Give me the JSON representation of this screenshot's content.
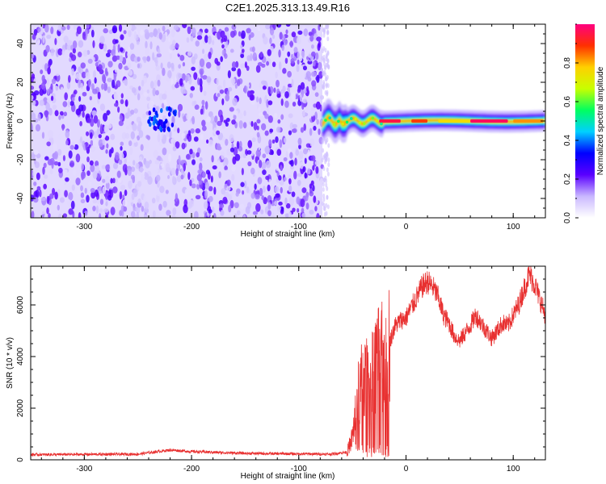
{
  "chart_data": [
    {
      "type": "heatmap",
      "title": "C2E1.2025.313.13.49.R16",
      "xlabel": "Height of straight line (km)",
      "ylabel": "Frequency (Hz)",
      "xlim": [
        -350,
        130
      ],
      "ylim": [
        -50,
        50
      ],
      "xticks": [
        -300,
        -200,
        -100,
        0,
        100
      ],
      "yticks": [
        -40,
        -20,
        0,
        20,
        40
      ],
      "regions": [
        {
          "name": "noise band",
          "x_range": [
            -350,
            -78
          ],
          "freq_range": [
            -50,
            50
          ],
          "amplitude": [
            0.05,
            0.25
          ]
        },
        {
          "name": "signal ridge",
          "x_range": [
            -78,
            130
          ],
          "freq_center": 0,
          "amplitude_peak": 1.0
        }
      ],
      "colorbar": {
        "label": "Normalized spectral amplitude",
        "range": [
          0.0,
          1.0
        ],
        "ticks": [
          "0.0",
          "0.2",
          "0.4",
          "0.6",
          "0.8"
        ],
        "stops": [
          "#ffffff",
          "#c9b8ff",
          "#5a00ff",
          "#0000ff",
          "#00d0ff",
          "#00ff60",
          "#c8ff00",
          "#ffd000",
          "#ff3000",
          "#ff0080"
        ]
      },
      "color": "#6a00e0"
    },
    {
      "type": "line",
      "xlabel": "Height of straight line (km)",
      "ylabel": "SNR (10 * v/v)",
      "xlim": [
        -350,
        130
      ],
      "ylim": [
        0,
        7500
      ],
      "xticks": [
        -300,
        -200,
        -100,
        0,
        100
      ],
      "yticks": [
        0,
        2000,
        4000,
        6000
      ],
      "series": [
        {
          "name": "SNR",
          "color": "#e83030",
          "x": [
            -350,
            -300,
            -250,
            -220,
            -200,
            -150,
            -100,
            -70,
            -55,
            -50,
            -45,
            -40,
            -35,
            -30,
            -25,
            -20,
            -15,
            -10,
            -5,
            0,
            5,
            10,
            15,
            20,
            25,
            30,
            35,
            40,
            45,
            50,
            55,
            60,
            65,
            70,
            75,
            80,
            85,
            90,
            95,
            100,
            105,
            110,
            115,
            120,
            125,
            130
          ],
          "values": [
            200,
            210,
            220,
            380,
            320,
            250,
            230,
            220,
            300,
            900,
            2400,
            3200,
            3000,
            3600,
            3900,
            4000,
            4600,
            5200,
            5400,
            5500,
            5900,
            6300,
            6700,
            6900,
            6700,
            6300,
            5600,
            5300,
            4800,
            4600,
            4900,
            5200,
            5600,
            5300,
            5000,
            4700,
            5000,
            5300,
            5200,
            5600,
            6000,
            6600,
            7200,
            6800,
            6200,
            5600
          ]
        }
      ]
    }
  ]
}
